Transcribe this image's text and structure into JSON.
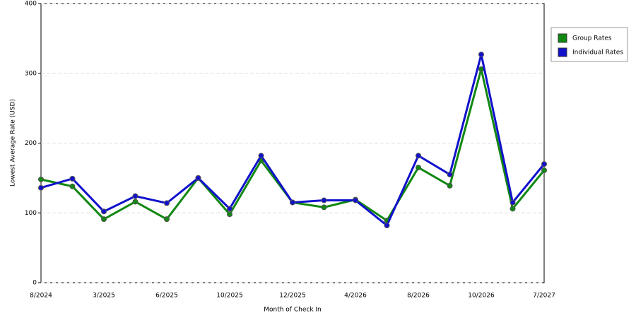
{
  "chart_data": {
    "type": "line",
    "x_label": "Month of Check In",
    "y_label": "Lowest Average Rate (USD)",
    "categories": [
      "8/2024",
      null,
      "3/2025",
      null,
      "6/2025",
      null,
      "10/2025",
      null,
      "12/2025",
      null,
      "4/2026",
      null,
      "8/2026",
      null,
      "10/2026",
      null,
      "7/2027"
    ],
    "series": [
      {
        "name": "Group Rates",
        "color": "#118811",
        "values": [
          148,
          138,
          91,
          116,
          91,
          150,
          98,
          175,
          115,
          108,
          119,
          89,
          165,
          139,
          306,
          106,
          161
        ]
      },
      {
        "name": "Individual Rates",
        "color": "#1111cc",
        "values": [
          136,
          149,
          102,
          124,
          114,
          150,
          106,
          182,
          115,
          118,
          118,
          82,
          182,
          155,
          327,
          115,
          170
        ]
      }
    ],
    "ylim": [
      0,
      400
    ],
    "yticks": [
      0,
      100,
      200,
      300,
      400
    ],
    "grid": true,
    "legend": "right"
  }
}
